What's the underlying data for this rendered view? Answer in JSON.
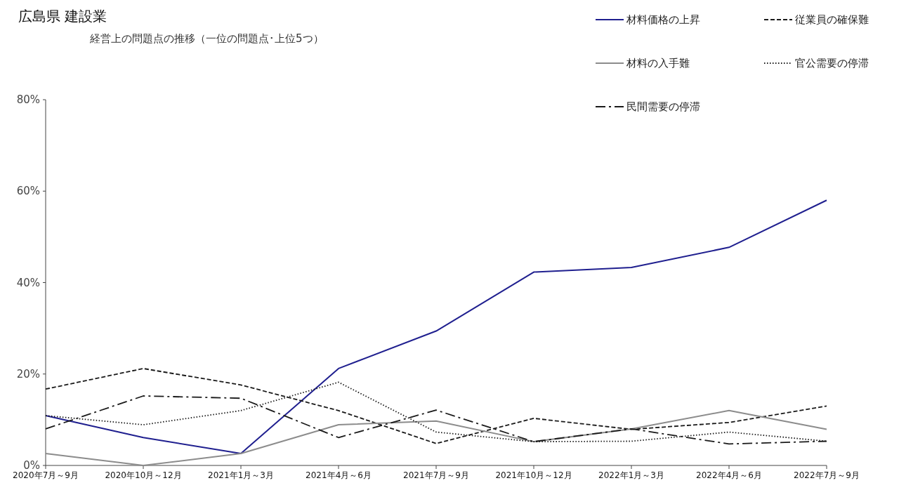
{
  "chart_data": {
    "type": "line",
    "title": "広島県 建設業",
    "subtitle": "経営上の問題点の推移（一位の問題点･上位5つ）",
    "categories": [
      "2020年7月～9月",
      "2020年10月～12月",
      "2021年1月～3月",
      "2021年4月～6月",
      "2021年7月～9月",
      "2021年10月～12月",
      "2022年1月～3月",
      "2022年4月～6月",
      "2022年7月～9月"
    ],
    "series": [
      {
        "name": "材料価格の上昇",
        "color": "#1f1f8f",
        "line_style": "solid",
        "values": [
          10.9,
          6.1,
          2.6,
          21.2,
          29.4,
          42.3,
          43.3,
          47.7,
          58.0
        ]
      },
      {
        "name": "従業員の確保難",
        "color": "#1a1a1a",
        "line_style": "dashed",
        "values": [
          16.7,
          21.2,
          17.6,
          12.0,
          4.8,
          10.3,
          7.9,
          9.4,
          13.0
        ]
      },
      {
        "name": "材料の入手難",
        "color": "#8c8c8c",
        "line_style": "solid",
        "values": [
          2.6,
          0,
          2.6,
          8.9,
          9.7,
          5.2,
          8.0,
          12.0,
          7.9
        ]
      },
      {
        "name": "官公需要の停滞",
        "color": "#1a1a1a",
        "line_style": "dotted",
        "values": [
          10.9,
          8.9,
          12.0,
          18.2,
          7.3,
          5.2,
          5.3,
          7.3,
          5.3
        ]
      },
      {
        "name": "民間需要の停滞",
        "color": "#1a1a1a",
        "line_style": "dashdot",
        "values": [
          8.0,
          15.2,
          14.7,
          6.1,
          12.1,
          5.2,
          8.0,
          4.7,
          5.3
        ]
      }
    ],
    "ylim": [
      0,
      80
    ],
    "yticks": [
      {
        "value": 0,
        "label": "0%"
      },
      {
        "value": 20,
        "label": "20%"
      },
      {
        "value": 40,
        "label": "40%"
      },
      {
        "value": 60,
        "label": "60%"
      },
      {
        "value": 80,
        "label": "80%"
      }
    ],
    "grid": false,
    "legend": "top right",
    "marker": "none"
  }
}
